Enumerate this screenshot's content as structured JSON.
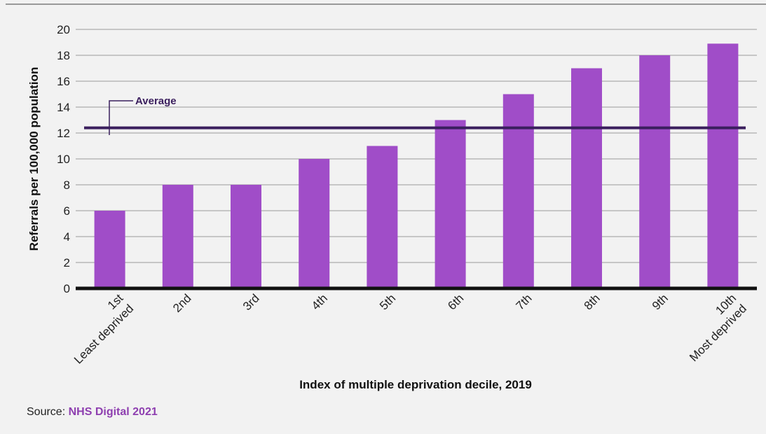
{
  "chart_data": {
    "type": "bar",
    "title": "",
    "xlabel": "Index of multiple deprivation decile, 2019",
    "ylabel": "Referrals per 100,000 population",
    "categories": [
      [
        "1st",
        "Least deprived"
      ],
      [
        "2nd"
      ],
      [
        "3rd"
      ],
      [
        "4th"
      ],
      [
        "5th"
      ],
      [
        "6th"
      ],
      [
        "7th"
      ],
      [
        "8th"
      ],
      [
        "9th"
      ],
      [
        "10th",
        "Most deprived"
      ]
    ],
    "values": [
      6,
      8,
      8,
      10,
      11,
      13,
      15,
      17,
      18,
      18.9
    ],
    "ylim": [
      0,
      20
    ],
    "yticks": [
      0,
      2,
      4,
      6,
      8,
      10,
      12,
      14,
      16,
      18,
      20
    ],
    "grid": true,
    "reference_line": {
      "label": "Average",
      "value": 12.4
    },
    "colors": {
      "bar": "#a04dc8",
      "average_line": "#3b1f5e",
      "grid": "#999999",
      "axis": "#111111"
    }
  },
  "source": {
    "prefix": "Source: ",
    "name": "NHS Digital 2021"
  }
}
